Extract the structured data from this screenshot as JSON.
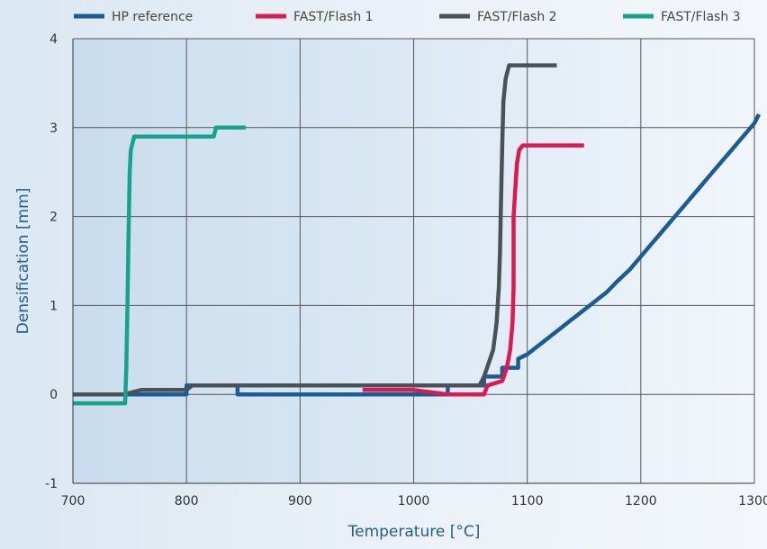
{
  "chart_data": {
    "type": "line",
    "title": "",
    "xlabel": "Temperature [°C]",
    "ylabel": "Densification [mm]",
    "xlim": [
      700,
      1300
    ],
    "ylim": [
      -1,
      4
    ],
    "xticks": [
      700,
      800,
      900,
      1000,
      1100,
      1200,
      1300
    ],
    "xtick_labels": [
      "700",
      "800",
      "900",
      "1000",
      "1100",
      "1200",
      "1300"
    ],
    "yticks": [
      -1,
      0,
      1,
      2,
      3,
      4
    ],
    "ytick_labels": [
      "-1",
      "0",
      "1",
      "2",
      "3",
      "4"
    ],
    "grid": true,
    "legend_position": "top",
    "series": [
      {
        "name": "HP reference",
        "color": "#1a5d96",
        "points": [
          [
            700,
            0
          ],
          [
            800,
            0
          ],
          [
            800,
            0.1
          ],
          [
            845,
            0.1
          ],
          [
            845,
            0
          ],
          [
            1030,
            0
          ],
          [
            1030,
            0.1
          ],
          [
            1062,
            0.1
          ],
          [
            1062,
            0.2
          ],
          [
            1078,
            0.2
          ],
          [
            1078,
            0.3
          ],
          [
            1092,
            0.3
          ],
          [
            1092,
            0.4
          ],
          [
            1100,
            0.45
          ],
          [
            1110,
            0.55
          ],
          [
            1120,
            0.65
          ],
          [
            1130,
            0.75
          ],
          [
            1140,
            0.85
          ],
          [
            1150,
            0.95
          ],
          [
            1160,
            1.05
          ],
          [
            1170,
            1.15
          ],
          [
            1180,
            1.28
          ],
          [
            1190,
            1.4
          ],
          [
            1200,
            1.55
          ],
          [
            1210,
            1.7
          ],
          [
            1220,
            1.85
          ],
          [
            1230,
            2.0
          ],
          [
            1240,
            2.15
          ],
          [
            1250,
            2.3
          ],
          [
            1260,
            2.45
          ],
          [
            1270,
            2.6
          ],
          [
            1280,
            2.75
          ],
          [
            1290,
            2.9
          ],
          [
            1300,
            3.05
          ],
          [
            1304,
            3.15
          ]
        ]
      },
      {
        "name": "FAST/Flash 1",
        "color": "#e0184f",
        "points": [
          [
            955,
            0.05
          ],
          [
            1000,
            0.05
          ],
          [
            1030,
            0
          ],
          [
            1062,
            0
          ],
          [
            1065,
            0.1
          ],
          [
            1078,
            0.15
          ],
          [
            1082,
            0.3
          ],
          [
            1085,
            0.5
          ],
          [
            1087,
            0.8
          ],
          [
            1088,
            1.2
          ],
          [
            1088,
            1.6
          ],
          [
            1088,
            2.0
          ],
          [
            1090,
            2.4
          ],
          [
            1091,
            2.6
          ],
          [
            1093,
            2.75
          ],
          [
            1096,
            2.8
          ],
          [
            1150,
            2.8
          ]
        ]
      },
      {
        "name": "FAST/Flash 2",
        "color": "#4b5257",
        "points": [
          [
            700,
            0
          ],
          [
            745,
            0
          ],
          [
            760,
            0.05
          ],
          [
            800,
            0.05
          ],
          [
            805,
            0.1
          ],
          [
            1000,
            0.1
          ],
          [
            1058,
            0.1
          ],
          [
            1062,
            0.2
          ],
          [
            1066,
            0.35
          ],
          [
            1070,
            0.5
          ],
          [
            1073,
            0.8
          ],
          [
            1075,
            1.2
          ],
          [
            1076,
            1.6
          ],
          [
            1077,
            2.2
          ],
          [
            1078,
            2.8
          ],
          [
            1079,
            3.3
          ],
          [
            1081,
            3.55
          ],
          [
            1084,
            3.7
          ],
          [
            1126,
            3.7
          ]
        ]
      },
      {
        "name": "FAST/Flash 3",
        "color": "#14a38c",
        "points": [
          [
            700,
            -0.1
          ],
          [
            746,
            -0.1
          ],
          [
            747,
            0.3
          ],
          [
            748,
            1.0
          ],
          [
            749,
            1.8
          ],
          [
            750,
            2.5
          ],
          [
            751,
            2.75
          ],
          [
            754,
            2.9
          ],
          [
            824,
            2.9
          ],
          [
            826,
            3.0
          ],
          [
            852,
            3.0
          ]
        ]
      }
    ]
  }
}
